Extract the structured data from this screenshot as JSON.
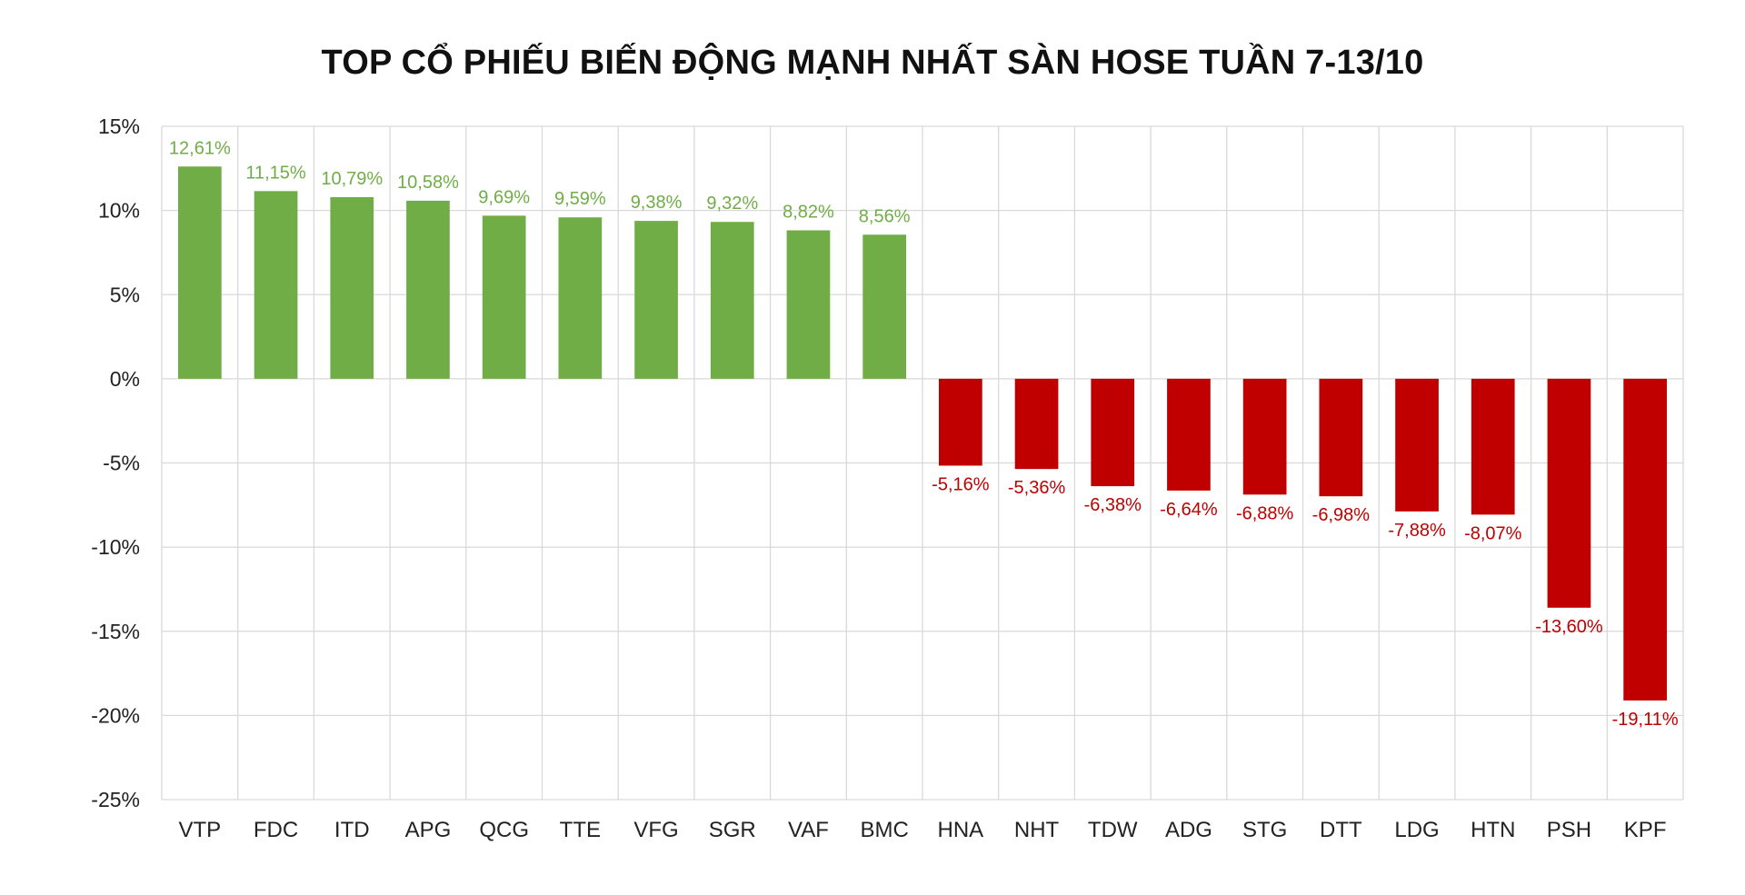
{
  "chart_data": {
    "type": "bar",
    "title": "TOP CỔ PHIẾU BIẾN ĐỘNG MẠNH NHẤT SÀN HOSE TUẦN 7-13/10",
    "xlabel": "",
    "ylabel": "",
    "ylim": [
      -25,
      15
    ],
    "yticks": [
      15,
      10,
      5,
      0,
      -5,
      -10,
      -15,
      -20,
      -25
    ],
    "ytick_labels": [
      "15%",
      "10%",
      "5%",
      "0%",
      "-5%",
      "-10%",
      "-15%",
      "-20%",
      "-25%"
    ],
    "grid": true,
    "categories": [
      "VTP",
      "FDC",
      "ITD",
      "APG",
      "QCG",
      "TTE",
      "VFG",
      "SGR",
      "VAF",
      "BMC",
      "HNA",
      "NHT",
      "TDW",
      "ADG",
      "STG",
      "DTT",
      "LDG",
      "HTN",
      "PSH",
      "KPF"
    ],
    "values": [
      12.61,
      11.15,
      10.79,
      10.58,
      9.69,
      9.59,
      9.38,
      9.32,
      8.82,
      8.56,
      -5.16,
      -5.36,
      -6.38,
      -6.64,
      -6.88,
      -6.98,
      -7.88,
      -8.07,
      -13.6,
      -19.11
    ],
    "data_labels": [
      "12,61%",
      "11,15%",
      "10,79%",
      "10,58%",
      "9,69%",
      "9,59%",
      "9,38%",
      "9,32%",
      "8,82%",
      "8,56%",
      "-5,16%",
      "-5,36%",
      "-6,38%",
      "-6,64%",
      "-6,88%",
      "-6,98%",
      "-7,88%",
      "-8,07%",
      "-13,60%",
      "-19,11%"
    ],
    "colors": {
      "positive": "#70ad47",
      "negative": "#c00000",
      "grid": "#d9d9d9",
      "axis_text": "#222222"
    }
  }
}
